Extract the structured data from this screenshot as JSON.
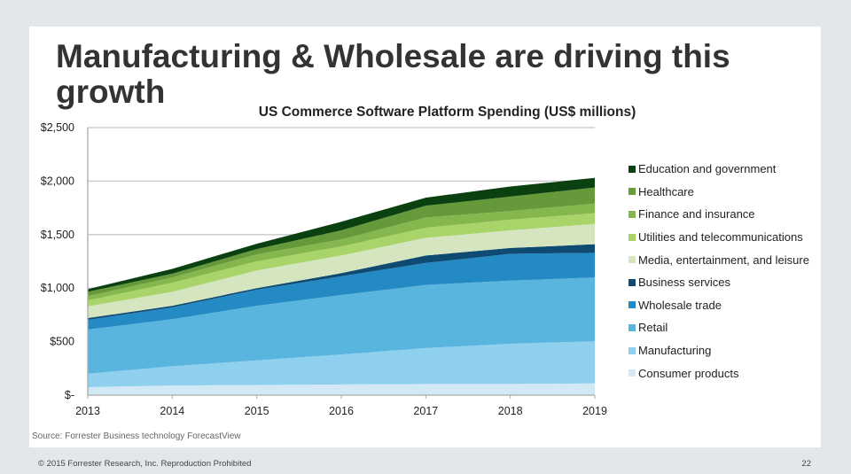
{
  "slide": {
    "title": "Manufacturing & Wholesale are driving this growth",
    "source": "Source: Forrester Business technology ForecastView",
    "footer": "© 2015 Forrester Research, Inc. Reproduction Prohibited",
    "page_number": "22"
  },
  "chart_data": {
    "type": "area",
    "stacked": true,
    "title": "US Commerce Software Platform Spending (US$ millions)",
    "xlabel": "",
    "ylabel": "",
    "categories": [
      "2013",
      "2014",
      "2015",
      "2016",
      "2017",
      "2018",
      "2019"
    ],
    "ylim": [
      0,
      2500
    ],
    "yticks": [
      0,
      500,
      1000,
      1500,
      2000,
      2500
    ],
    "ytick_labels": [
      "$-",
      "$500",
      "$1,000",
      "$1,500",
      "$2,000",
      "$2,500"
    ],
    "grid": true,
    "legend_position": "right",
    "series": [
      {
        "name": "Consumer products",
        "color": "#d2e9f5",
        "values": [
          75,
          90,
          95,
          100,
          105,
          105,
          110
        ]
      },
      {
        "name": "Manufacturing",
        "color": "#8fd0ee",
        "values": [
          125,
          180,
          230,
          280,
          335,
          375,
          395
        ]
      },
      {
        "name": "Retail",
        "color": "#59b4de",
        "values": [
          413,
          440,
          510,
          555,
          590,
          590,
          595
        ]
      },
      {
        "name": "Wholesale trade",
        "color": "#248ac4",
        "values": [
          91,
          110,
          150,
          175,
          205,
          250,
          230
        ]
      },
      {
        "name": "Business services",
        "color": "#0e4a72",
        "values": [
          16,
          15,
          15,
          30,
          70,
          55,
          80
        ]
      },
      {
        "name": "Media, entertainment, and leisure",
        "color": "#d5e5bf",
        "values": [
          110,
          130,
          165,
          165,
          165,
          165,
          190
        ]
      },
      {
        "name": "Utilities and telecommunications",
        "color": "#a8d46a",
        "values": [
          55,
          85,
          85,
          85,
          95,
          100,
          100
        ]
      },
      {
        "name": "Finance and insurance",
        "color": "#86b74f",
        "values": [
          40,
          50,
          65,
          65,
          95,
          80,
          90
        ]
      },
      {
        "name": "Healthcare",
        "color": "#66993a",
        "values": [
          40,
          35,
          50,
          85,
          110,
          135,
          150
        ]
      },
      {
        "name": "Education and government",
        "color": "#0b4110",
        "values": [
          25,
          45,
          50,
          80,
          75,
          95,
          90
        ]
      }
    ]
  }
}
